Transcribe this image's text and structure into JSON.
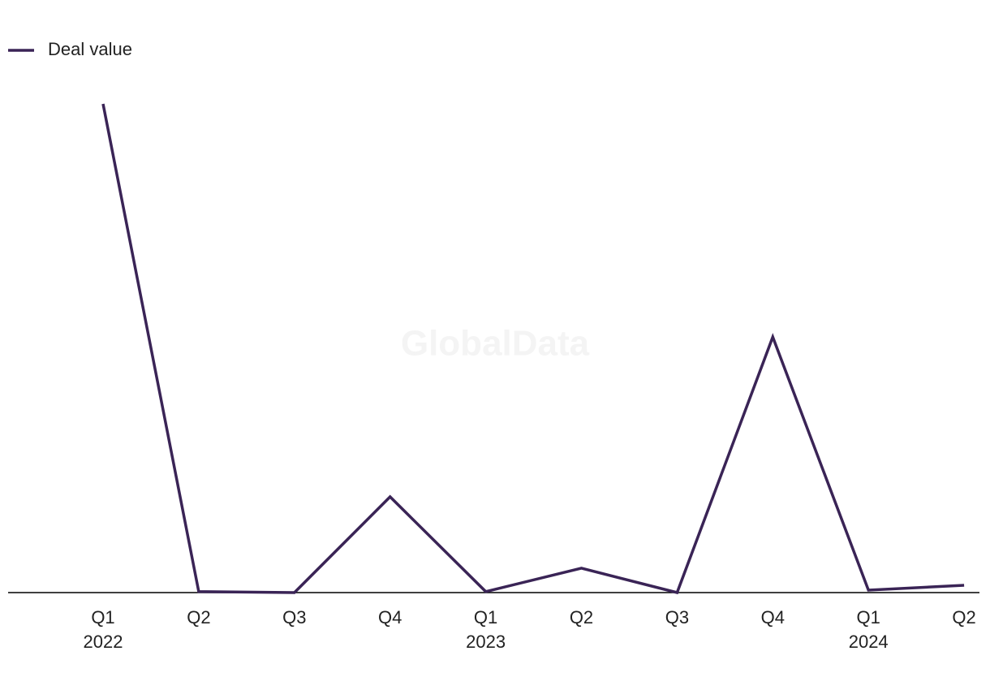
{
  "chart_data": {
    "type": "line",
    "watermark": "GlobalData",
    "categories": [
      "Q1",
      "Q2",
      "Q3",
      "Q4",
      "Q1",
      "Q2",
      "Q3",
      "Q4",
      "Q1",
      "Q2"
    ],
    "year_labels": [
      "2022",
      null,
      null,
      null,
      "2023",
      null,
      null,
      null,
      "2024",
      null
    ],
    "series": [
      {
        "name": "Deal value",
        "color": "#3a2456",
        "values": [
          100,
          0.2,
          0,
          19.6,
          0.2,
          5,
          0,
          52.3,
          0.5,
          1.5
        ]
      }
    ],
    "ylim": [
      0,
      100
    ],
    "legend": "top-left"
  }
}
